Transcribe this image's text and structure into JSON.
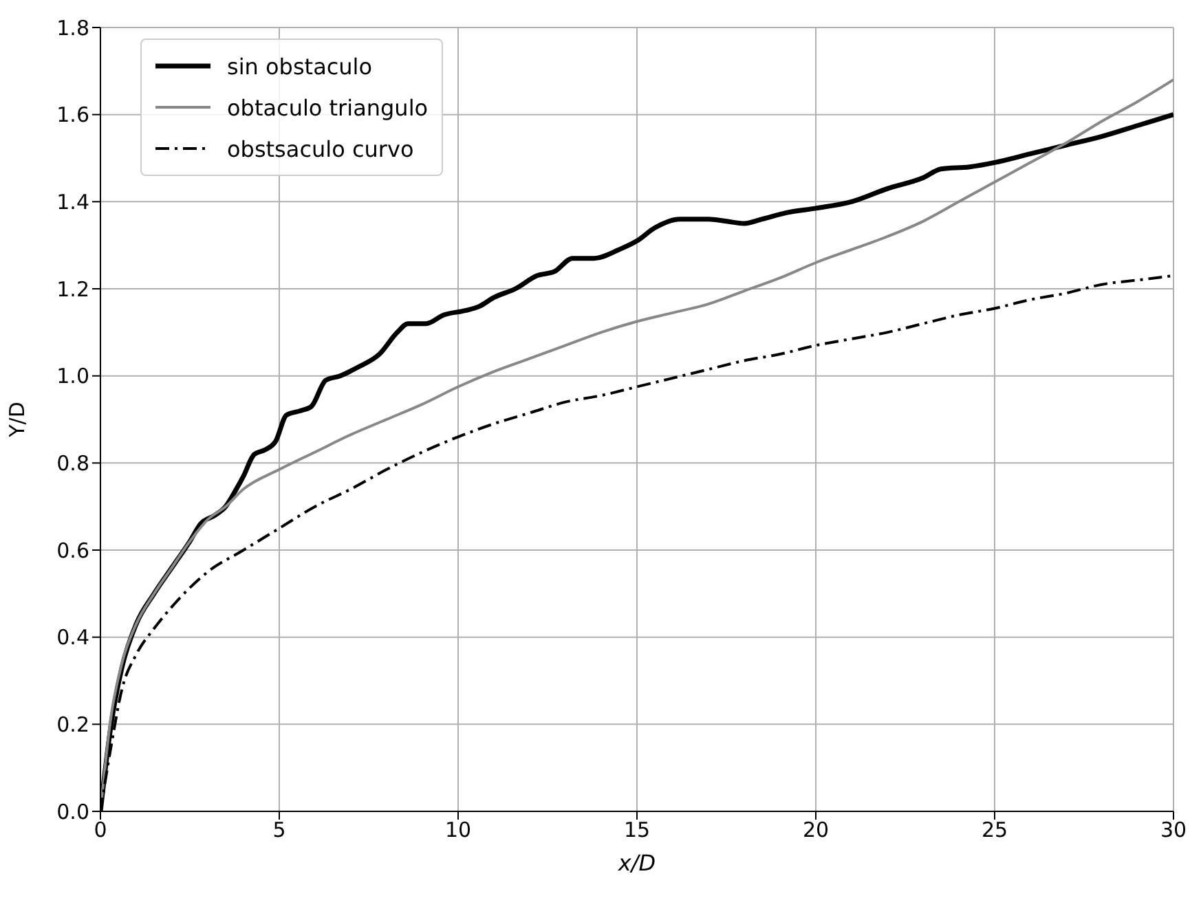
{
  "chart_data": {
    "type": "line",
    "xlabel": "x/D",
    "ylabel": "Y/D",
    "xlim": [
      0,
      30
    ],
    "xticks": [
      0,
      5,
      10,
      15,
      20,
      25,
      30
    ],
    "ylim": [
      0,
      1.8
    ],
    "yticks": [
      {
        "value": 0,
        "label": "0.0"
      },
      {
        "value": 0.2,
        "label": "0.2"
      },
      {
        "value": 0.4,
        "label": "0.4"
      },
      {
        "value": 0.6,
        "label": "0.6"
      },
      {
        "value": 0.8,
        "label": "0.8"
      },
      {
        "value": 1,
        "label": "1.0"
      },
      {
        "value": 1.2,
        "label": "1.2"
      },
      {
        "value": 1.4,
        "label": "1.4"
      },
      {
        "value": 1.6,
        "label": "1.6"
      },
      {
        "value": 1.8,
        "label": "1.8"
      }
    ],
    "grid": true,
    "legend": "top left",
    "marker": "none",
    "series": [
      {
        "name": "sin obstaculo",
        "color": "#000000",
        "line_style": "solid",
        "x": [
          0,
          0.3,
          0.6,
          1,
          1.5,
          2,
          2.5,
          2.8,
          3.2,
          3.5,
          3.8,
          4.0,
          4.3,
          4.6,
          4.9,
          5.2,
          5.6,
          5.9,
          6.3,
          6.7,
          7.2,
          7.8,
          8.3,
          8.6,
          9.1,
          9.6,
          10.2,
          10.6,
          11,
          11.6,
          12.2,
          12.7,
          13.2,
          13.8,
          14.5,
          15,
          15.5,
          16.2,
          17,
          17.5,
          18,
          18.5,
          19.2,
          20,
          21,
          22,
          23,
          23.5,
          24.3,
          25,
          26,
          27,
          28,
          29,
          30
        ],
        "values": [
          0,
          0.2,
          0.33,
          0.43,
          0.5,
          0.56,
          0.62,
          0.66,
          0.68,
          0.7,
          0.74,
          0.77,
          0.82,
          0.83,
          0.85,
          0.91,
          0.92,
          0.93,
          0.99,
          1.0,
          1.02,
          1.05,
          1.1,
          1.12,
          1.12,
          1.14,
          1.15,
          1.16,
          1.18,
          1.2,
          1.23,
          1.24,
          1.27,
          1.27,
          1.29,
          1.31,
          1.34,
          1.36,
          1.36,
          1.355,
          1.35,
          1.36,
          1.375,
          1.385,
          1.4,
          1.43,
          1.455,
          1.475,
          1.48,
          1.49,
          1.51,
          1.53,
          1.55,
          1.575,
          1.6
        ]
      },
      {
        "name": "obtaculo triangulo",
        "color": "#888888",
        "line_style": "solid",
        "x": [
          0,
          0.3,
          0.6,
          1,
          1.5,
          2,
          2.5,
          3,
          3.5,
          4,
          5,
          6,
          7,
          8,
          9,
          10,
          11,
          12,
          13,
          14,
          15,
          16,
          17,
          18,
          19,
          20,
          21,
          22,
          23,
          24,
          25,
          26,
          27,
          28,
          29,
          30
        ],
        "values": [
          0,
          0.22,
          0.34,
          0.43,
          0.5,
          0.56,
          0.62,
          0.67,
          0.7,
          0.74,
          0.785,
          0.825,
          0.865,
          0.9,
          0.935,
          0.975,
          1.01,
          1.04,
          1.07,
          1.1,
          1.125,
          1.145,
          1.165,
          1.195,
          1.225,
          1.26,
          1.29,
          1.32,
          1.355,
          1.4,
          1.445,
          1.49,
          1.535,
          1.585,
          1.63,
          1.68
        ]
      },
      {
        "name": "obstsaculo curvo",
        "color": "#000000",
        "line_style": "dashdot",
        "x": [
          0,
          0.3,
          0.6,
          1,
          1.5,
          2,
          3,
          4,
          5,
          6,
          7,
          8,
          9,
          10,
          11,
          12,
          13,
          14,
          15,
          16,
          17,
          18,
          19,
          20,
          21,
          22,
          23,
          24,
          25,
          26,
          27,
          28,
          29,
          30
        ],
        "values": [
          0,
          0.15,
          0.28,
          0.36,
          0.42,
          0.47,
          0.55,
          0.6,
          0.65,
          0.7,
          0.74,
          0.785,
          0.825,
          0.86,
          0.89,
          0.915,
          0.94,
          0.955,
          0.975,
          0.995,
          1.015,
          1.035,
          1.05,
          1.07,
          1.085,
          1.1,
          1.12,
          1.14,
          1.155,
          1.175,
          1.19,
          1.21,
          1.22,
          1.23
        ]
      }
    ]
  }
}
